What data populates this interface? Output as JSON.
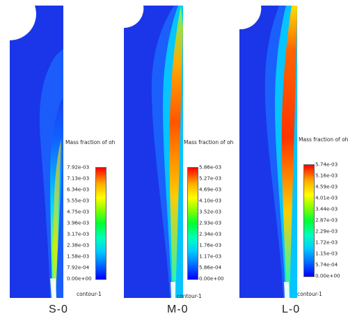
{
  "panels": [
    {
      "case_label": "S-0",
      "legend_title": "Mass fraction of oh",
      "contour_label": "contour-1",
      "ticks": [
        "7.92e-03",
        "7.13e-03",
        "6.34e-03",
        "5.55e-03",
        "4.75e-03",
        "3.96e-03",
        "3.17e-03",
        "2.38e-03",
        "1.58e-03",
        "7.92e-04",
        "0.00e+00"
      ]
    },
    {
      "case_label": "M-0",
      "legend_title": "Mass fraction of oh",
      "contour_label": "contour-1",
      "ticks": [
        "5.86e-03",
        "5.27e-03",
        "4.69e-03",
        "4.10e-03",
        "3.52e-03",
        "2.93e-03",
        "2.34e-03",
        "1.76e-03",
        "1.17e-03",
        "5.86e-04",
        "0.00e+00"
      ]
    },
    {
      "case_label": "L-0",
      "legend_title": "Mass fraction of oh",
      "contour_label": "contour-1",
      "ticks": [
        "5.74e-03",
        "5.16e-03",
        "4.59e-03",
        "4.01e-03",
        "3.44e-03",
        "2.87e-03",
        "2.29e-03",
        "1.72e-03",
        "1.15e-03",
        "5.74e-04",
        "0.00e+00"
      ]
    }
  ],
  "colors": {
    "background_field": "#1a2fe0",
    "colormap": [
      "#0000ff",
      "#00ccff",
      "#00ff33",
      "#ffff00",
      "#ff0000"
    ]
  }
}
